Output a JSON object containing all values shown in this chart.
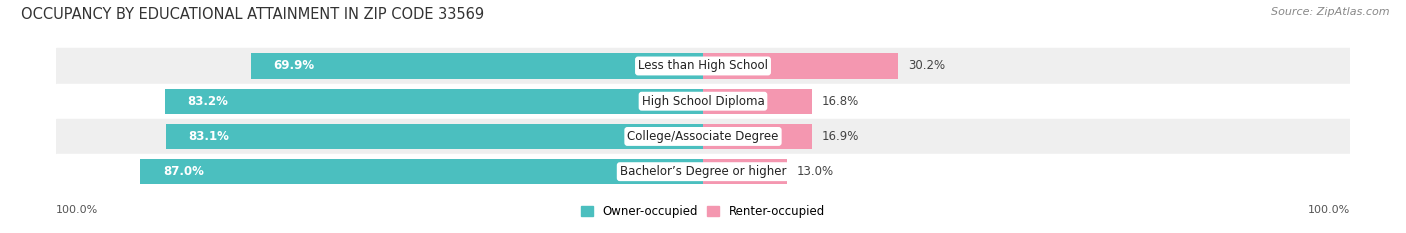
{
  "title": "OCCUPANCY BY EDUCATIONAL ATTAINMENT IN ZIP CODE 33569",
  "source": "Source: ZipAtlas.com",
  "categories": [
    "Less than High School",
    "High School Diploma",
    "College/Associate Degree",
    "Bachelor’s Degree or higher"
  ],
  "owner_values": [
    69.9,
    83.2,
    83.1,
    87.0
  ],
  "renter_values": [
    30.2,
    16.8,
    16.9,
    13.0
  ],
  "owner_color": "#4bbfbf",
  "renter_color": "#f497b0",
  "owner_label": "Owner-occupied",
  "renter_label": "Renter-occupied",
  "xlim": [
    -100,
    100
  ],
  "axis_label_left": "100.0%",
  "axis_label_right": "100.0%",
  "title_fontsize": 10.5,
  "source_fontsize": 8,
  "value_fontsize": 8.5,
  "cat_fontsize": 8.5,
  "legend_fontsize": 8.5,
  "bar_height": 0.72,
  "background_color": "#ffffff",
  "row_bg_colors": [
    "#efefef",
    "#ffffff",
    "#efefef",
    "#ffffff"
  ]
}
